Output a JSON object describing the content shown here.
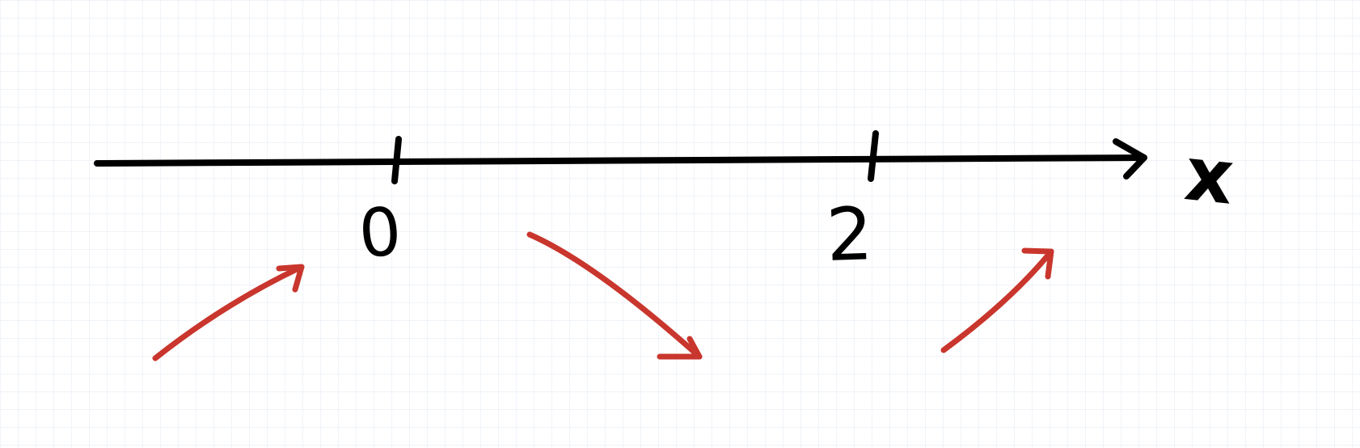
{
  "axis": {
    "label": "x",
    "ticks": [
      "0",
      "2"
    ]
  },
  "arrows": [
    {
      "name": "increasing-left",
      "direction": "up"
    },
    {
      "name": "decreasing-middle",
      "direction": "down"
    },
    {
      "name": "increasing-right",
      "direction": "up"
    }
  ],
  "colors": {
    "grid": "#e6ecf5",
    "axis": "#000000",
    "arrow": "#c9362d",
    "background": "#ffffff"
  }
}
